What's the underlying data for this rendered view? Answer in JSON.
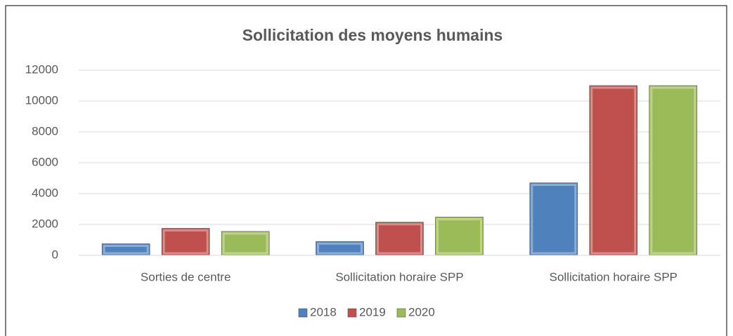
{
  "chart_data": {
    "type": "bar",
    "title": "Sollicitation des moyens humains",
    "categories": [
      "Sorties de centre",
      "Sollicitation horaire SPP",
      "Sollicitation horaire SPP"
    ],
    "series": [
      {
        "name": "2018",
        "color": "#4f81bd",
        "values": [
          750,
          900,
          4700
        ]
      },
      {
        "name": "2019",
        "color": "#c0504d",
        "values": [
          1750,
          2150,
          11000
        ]
      },
      {
        "name": "2020",
        "color": "#9bbb59",
        "values": [
          1550,
          2480,
          11000
        ]
      }
    ],
    "ylim": [
      0,
      12000
    ],
    "yticks": [
      0,
      2000,
      4000,
      6000,
      8000,
      10000,
      12000
    ],
    "grid": true,
    "legend": "bottom"
  }
}
